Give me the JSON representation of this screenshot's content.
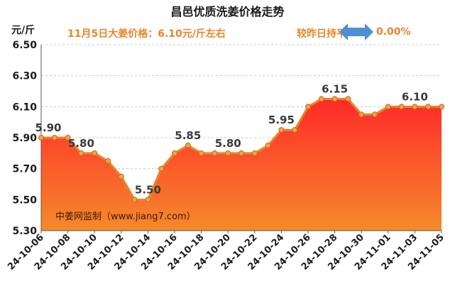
{
  "header": {
    "title": "昌邑优质洗姜价格走势",
    "unit": "元/斤",
    "price_note": "11月5日大姜价格：6.10元/斤左右",
    "compare_label": "较昨日持平",
    "change_pct": "0.00%"
  },
  "source_note": "中姜网监制（www.jiang7.com）",
  "colors": {
    "line": "#e8862a",
    "fill_top": "#ff2a2a",
    "fill_bottom": "#f58a2a",
    "arrow": "#4f8fd6",
    "accent_text": "#e8862a"
  },
  "chart_data": {
    "type": "area",
    "ylabel": "元/斤",
    "ylim": [
      5.3,
      6.5
    ],
    "yticks": [
      "5.30",
      "5.50",
      "5.70",
      "5.90",
      "6.10",
      "6.30",
      "6.50"
    ],
    "x": [
      "24-10-06",
      "24-10-07",
      "24-10-08",
      "24-10-09",
      "24-10-10",
      "24-10-11",
      "24-10-12",
      "24-10-13",
      "24-10-14",
      "24-10-15",
      "24-10-16",
      "24-10-17",
      "24-10-18",
      "24-10-19",
      "24-10-20",
      "24-10-21",
      "24-10-22",
      "24-10-23",
      "24-10-24",
      "24-10-25",
      "24-10-26",
      "24-10-27",
      "24-10-28",
      "24-10-29",
      "24-10-30",
      "24-10-31",
      "24-11-01",
      "24-11-02",
      "24-11-03",
      "24-11-04",
      "24-11-05"
    ],
    "xtick_labels": [
      "24-10-06",
      "24-10-08",
      "24-10-10",
      "24-10-12",
      "24-10-14",
      "24-10-16",
      "24-10-18",
      "24-10-20",
      "24-10-22",
      "24-10-24",
      "24-10-26",
      "24-10-28",
      "24-10-30",
      "24-11-01",
      "24-11-03",
      "24-11-05"
    ],
    "values": [
      5.9,
      5.9,
      5.9,
      5.8,
      5.8,
      5.75,
      5.65,
      5.5,
      5.5,
      5.7,
      5.8,
      5.85,
      5.8,
      5.8,
      5.8,
      5.8,
      5.8,
      5.85,
      5.95,
      5.95,
      6.1,
      6.15,
      6.15,
      6.15,
      6.05,
      6.05,
      6.1,
      6.1,
      6.1,
      6.1,
      6.1
    ],
    "data_labels": [
      {
        "index": 0,
        "text": "5.90"
      },
      {
        "index": 3,
        "text": "5.80"
      },
      {
        "index": 8,
        "text": "5.50"
      },
      {
        "index": 11,
        "text": "5.85"
      },
      {
        "index": 14,
        "text": "5.80"
      },
      {
        "index": 18,
        "text": "5.95"
      },
      {
        "index": 22,
        "text": "6.15"
      },
      {
        "index": 28,
        "text": "6.10"
      }
    ],
    "grid": "horizontal dashed"
  }
}
